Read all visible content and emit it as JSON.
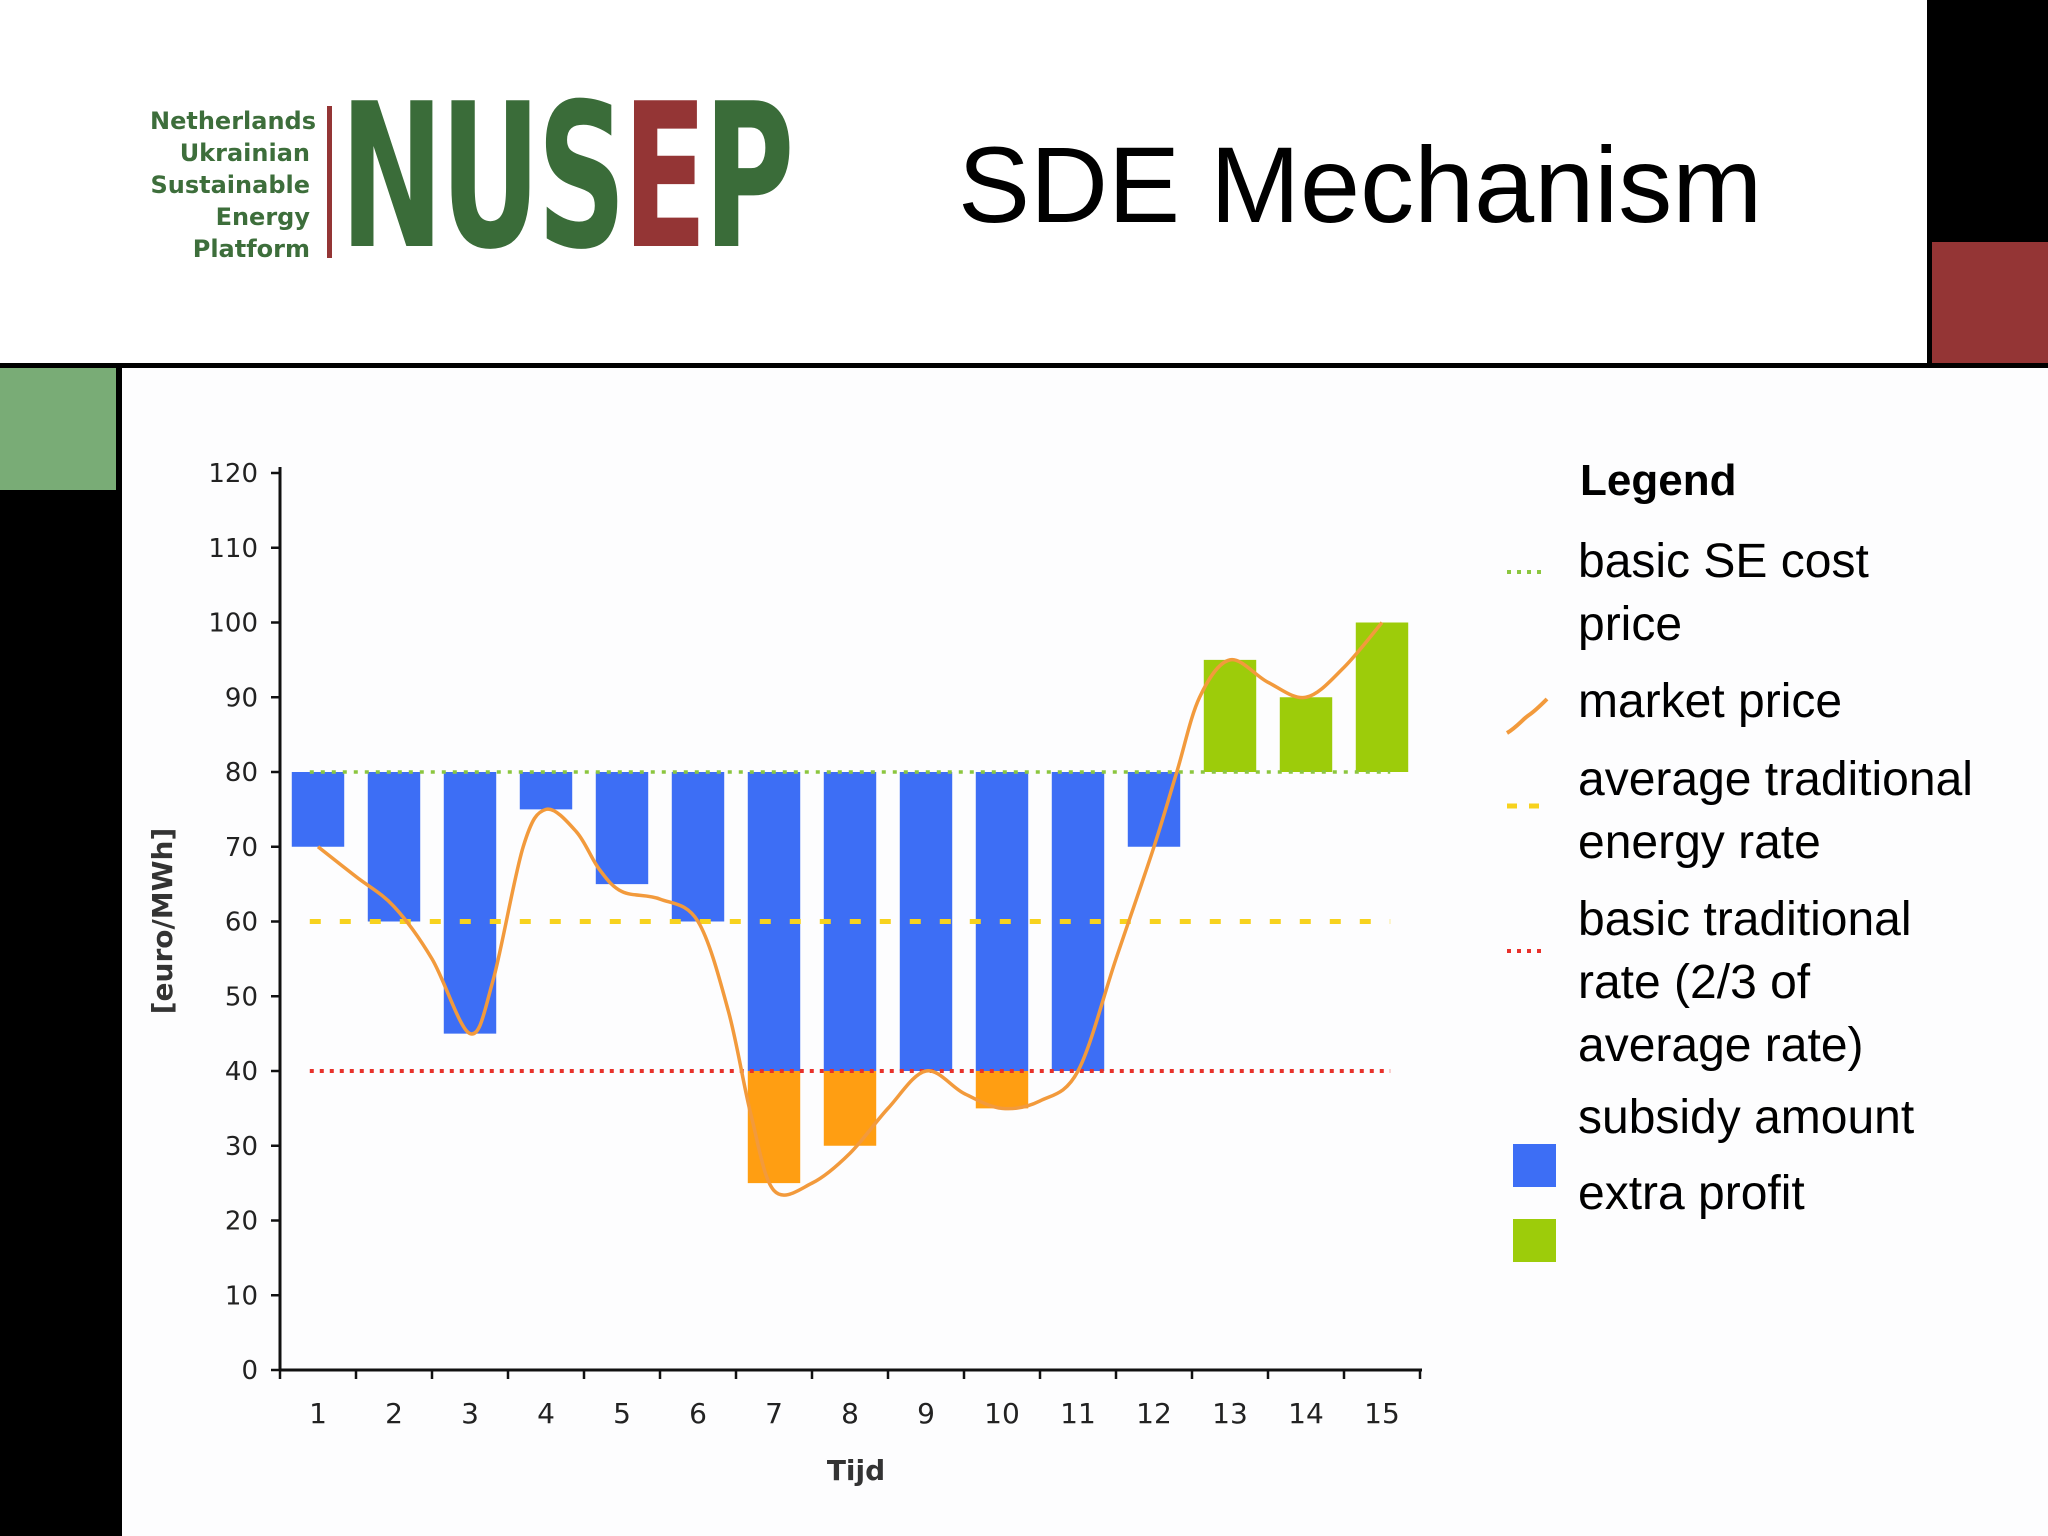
{
  "header": {
    "logo_words": [
      "Netherlands",
      "Ukrainian",
      "Sustainable",
      "Energy",
      "Platform"
    ],
    "logo_mark_green": "NUS",
    "logo_mark_red": "E",
    "logo_mark_green2": "P",
    "title": "SDE Mechanism"
  },
  "colors": {
    "subsidy": "#3d6ef5",
    "extra_profit": "#9dcc0a",
    "below_base": "#ff9e12",
    "market_price": "#f29a3c",
    "basic_se_cost": "#8cc63f",
    "avg_traditional": "#f7d21e",
    "basic_traditional": "#e8312b",
    "brand_green": "#3a6c39",
    "brand_red": "#943535"
  },
  "legend": {
    "title": "Legend",
    "items": [
      {
        "key": "basic_se_cost",
        "lines": [
          "basic SE cost",
          "price"
        ],
        "symbol": "dotted-line"
      },
      {
        "key": "market_price",
        "lines": [
          "market price"
        ],
        "symbol": "curve"
      },
      {
        "key": "avg_traditional",
        "lines": [
          "average traditional",
          "energy rate"
        ],
        "symbol": "dashed-line"
      },
      {
        "key": "basic_traditional",
        "lines": [
          "basic traditional",
          "rate (2/3 of",
          "average rate)"
        ],
        "symbol": "dotted-line"
      },
      {
        "key": "subsidy",
        "lines": [
          "subsidy amount"
        ],
        "symbol": "square"
      },
      {
        "key": "extra_profit",
        "lines": [
          "extra profit"
        ],
        "symbol": "square"
      }
    ]
  },
  "chart_data": {
    "type": "bar",
    "xlabel": "Tijd",
    "ylabel": "[euro/MWh]",
    "ylim": [
      0,
      120
    ],
    "yticks": [
      0,
      10,
      20,
      30,
      40,
      50,
      60,
      70,
      80,
      90,
      100,
      110,
      120
    ],
    "categories": [
      "1",
      "2",
      "3",
      "4",
      "5",
      "6",
      "7",
      "8",
      "9",
      "10",
      "11",
      "12",
      "13",
      "14",
      "15"
    ],
    "basic_se_cost_price": 80,
    "average_traditional_rate": 60,
    "basic_traditional_rate": 40,
    "market_price": [
      70,
      60,
      45,
      75,
      65,
      60,
      25,
      30,
      40,
      35,
      40,
      70,
      95,
      90,
      100
    ],
    "series": [
      {
        "name": "subsidy amount",
        "values": [
          10,
          20,
          35,
          5,
          15,
          20,
          40,
          40,
          40,
          40,
          40,
          10,
          0,
          0,
          0
        ]
      },
      {
        "name": "extra profit",
        "values": [
          0,
          0,
          0,
          0,
          0,
          0,
          0,
          0,
          0,
          0,
          0,
          0,
          15,
          10,
          20
        ]
      }
    ],
    "below_base_rate": [
      0,
      0,
      0,
      0,
      0,
      0,
      15,
      10,
      0,
      5,
      0,
      0,
      0,
      0,
      0
    ],
    "market_curve_points": [
      [
        1,
        70
      ],
      [
        1.5,
        66
      ],
      [
        2,
        62
      ],
      [
        2.5,
        55
      ],
      [
        3,
        45
      ],
      [
        3.3,
        52
      ],
      [
        3.7,
        70
      ],
      [
        4,
        75
      ],
      [
        4.4,
        72
      ],
      [
        4.7,
        67
      ],
      [
        5,
        64
      ],
      [
        5.5,
        63
      ],
      [
        6,
        60
      ],
      [
        6.4,
        48
      ],
      [
        6.7,
        34
      ],
      [
        7,
        24
      ],
      [
        7.5,
        25
      ],
      [
        8,
        29
      ],
      [
        8.5,
        35
      ],
      [
        9,
        40
      ],
      [
        9.5,
        37
      ],
      [
        10,
        35
      ],
      [
        10.5,
        36
      ],
      [
        11,
        40
      ],
      [
        11.5,
        55
      ],
      [
        12,
        70
      ],
      [
        12.3,
        80
      ],
      [
        12.6,
        90
      ],
      [
        13,
        95
      ],
      [
        13.5,
        92
      ],
      [
        14,
        90
      ],
      [
        14.5,
        94
      ],
      [
        15,
        100
      ]
    ]
  }
}
